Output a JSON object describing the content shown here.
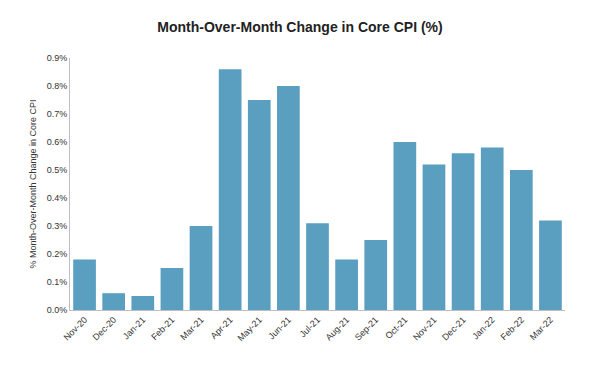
{
  "chart_data": {
    "type": "bar",
    "title": "Month-Over-Month Change in Core CPI (%)",
    "y_label": "% Month-Over-Month Change in Core CPI",
    "categories": [
      "Nov-20",
      "Dec-20",
      "Jan-21",
      "Feb-21",
      "Mar-21",
      "Apr-21",
      "May-21",
      "Jun-21",
      "Jul-21",
      "Aug-21",
      "Sep-21",
      "Oct-21",
      "Nov-21",
      "Dec-21",
      "Jan-22",
      "Feb-22",
      "Mar-22"
    ],
    "values": [
      0.18,
      0.06,
      0.05,
      0.15,
      0.3,
      0.86,
      0.75,
      0.8,
      0.31,
      0.18,
      0.25,
      0.6,
      0.52,
      0.56,
      0.58,
      0.5,
      0.32
    ],
    "color": "#5b9fc0",
    "ylim": [
      0,
      0.9
    ],
    "yticks": [
      {
        "value": 0,
        "label": "0.0%"
      },
      {
        "value": 0.1,
        "label": "0.1%"
      },
      {
        "value": 0.2,
        "label": "0.2%"
      },
      {
        "value": 0.3,
        "label": "0.3%"
      },
      {
        "value": 0.4,
        "label": "0.4%"
      },
      {
        "value": 0.5,
        "label": "0.5%"
      },
      {
        "value": 0.6,
        "label": "0.6%"
      },
      {
        "value": 0.7,
        "label": "0.7%"
      },
      {
        "value": 0.8,
        "label": "0.8%"
      },
      {
        "value": 0.9,
        "label": "0.9%"
      }
    ],
    "grid": false
  }
}
